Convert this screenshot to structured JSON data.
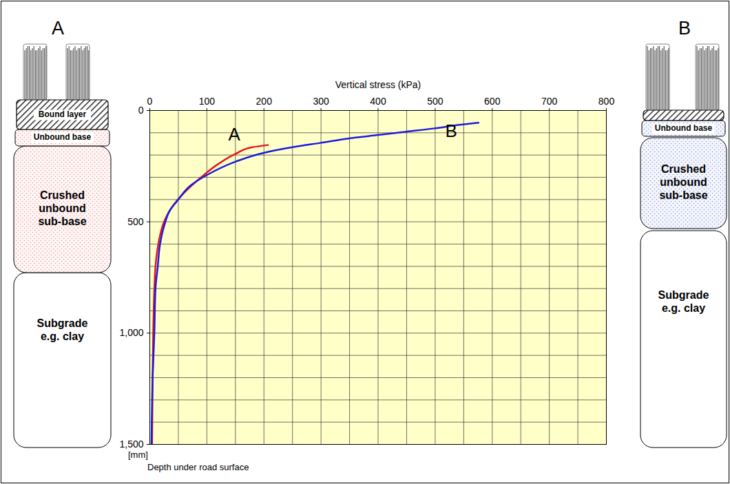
{
  "chart_data": {
    "type": "line",
    "x_label": "Vertical stress (kPa)",
    "y_label": "Depth under road surface",
    "y_unit": "[mm]",
    "xlim": [
      0,
      800
    ],
    "xticks": [
      0,
      100,
      200,
      300,
      400,
      500,
      600,
      700,
      800
    ],
    "xminorticks": [
      50,
      150,
      250,
      350,
      450,
      550,
      650,
      750
    ],
    "ylim": [
      0,
      1500
    ],
    "yticks": [
      0,
      500,
      1000,
      1500
    ],
    "yminorticks": [
      100,
      200,
      300,
      400,
      600,
      700,
      800,
      900,
      1100,
      1200,
      1300,
      1400
    ],
    "grid": true,
    "series": [
      {
        "name": "A",
        "color": "#e8141c",
        "x": [
          207,
          180,
          150,
          120,
          90,
          60,
          40,
          25,
          15,
          10,
          8,
          6,
          5,
          4
        ],
        "y": [
          155,
          165,
          195,
          240,
          300,
          370,
          430,
          500,
          600,
          700,
          800,
          1000,
          1200,
          1500
        ]
      },
      {
        "name": "B",
        "color": "#1a1ae0",
        "x": [
          576,
          540,
          500,
          450,
          400,
          350,
          300,
          250,
          200,
          150,
          100,
          70,
          50,
          35,
          25,
          18,
          14,
          10,
          8,
          5,
          3
        ],
        "y": [
          55,
          65,
          80,
          95,
          110,
          125,
          145,
          165,
          190,
          230,
          290,
          340,
          400,
          450,
          520,
          600,
          700,
          800,
          1000,
          1200,
          1500
        ]
      }
    ],
    "annotations": [
      {
        "text": "A",
        "x": 148,
        "y": 108
      },
      {
        "text": "B",
        "x": 528,
        "y": 93
      }
    ]
  },
  "cross_sections": [
    {
      "label": "A",
      "bound_layer": "Bound layer",
      "layers": [
        "Unbound base",
        "Crushed unbound sub-base",
        "Subgrade e.g. clay"
      ]
    },
    {
      "label": "B",
      "layers": [
        "Unbound base",
        "Crushed unbound sub-base",
        "Subgrade e.g. clay"
      ]
    }
  ]
}
